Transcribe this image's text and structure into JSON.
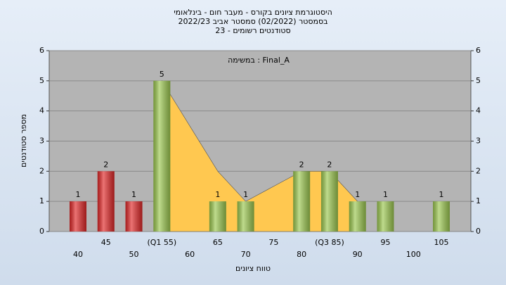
{
  "chart_data": {
    "type": "bar",
    "title_lines": [
      "היסטוגרמת ציונים בקורס - מעבר חום - בינלאומי",
      "בסמסטר  (02/2022)  סמסטר אביב 2022/23",
      "סטודנטים רשומים - 23"
    ],
    "annotation": "במשימה : Final_A",
    "x_label": "טווח ציונים",
    "y_label": "מספר סטודנטים",
    "categories": [
      "40",
      "45",
      "50",
      "(Q1 55)",
      "60",
      "65",
      "70",
      "75",
      "80",
      "(Q3 85)",
      "90",
      "95",
      "100",
      "105"
    ],
    "values": [
      1,
      2,
      1,
      5,
      0,
      1,
      1,
      0,
      2,
      2,
      1,
      1,
      0,
      1
    ],
    "colors": [
      "#e02828",
      "#e02828",
      "#e02828",
      "#9cc850",
      "#9cc850",
      "#9cc850",
      "#9cc850",
      "#9cc850",
      "#9cc850",
      "#9cc850",
      "#9cc850",
      "#9cc850",
      "#9cc850",
      "#9cc850"
    ],
    "overlay": {
      "color": "#ffc850",
      "values": [
        null,
        null,
        null,
        5,
        3.5,
        2,
        1,
        1.5,
        2,
        2,
        1,
        null,
        null,
        null
      ]
    },
    "ylim": [
      0,
      6
    ],
    "yticks": [
      0,
      1,
      2,
      3,
      4,
      5,
      6
    ],
    "y2lim": [
      0,
      6
    ],
    "y2ticks": [
      0,
      1,
      2,
      3,
      4,
      5,
      6
    ],
    "grid": true
  }
}
